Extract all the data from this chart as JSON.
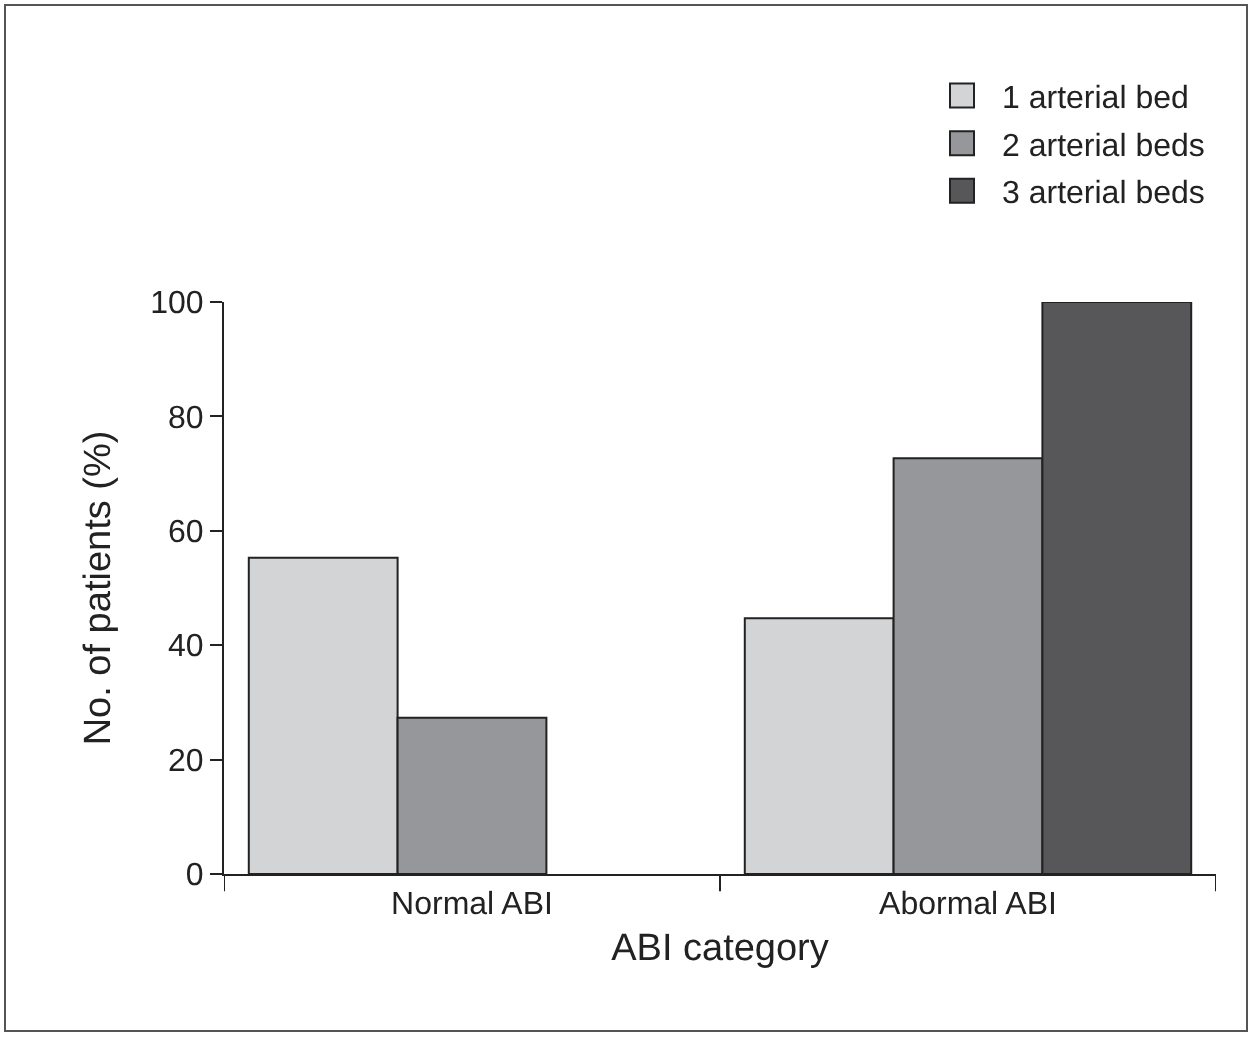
{
  "chart_data": {
    "type": "bar",
    "xlabel": "ABI category",
    "ylabel": "No. of patients (%)",
    "categories": [
      "Normal ABI",
      "Abormal ABI"
    ],
    "series": [
      {
        "name": "1 arterial bed",
        "color": "#d3d4d6",
        "values": [
          55.3,
          44.7
        ]
      },
      {
        "name": "2 arterial beds",
        "color": "#96979a",
        "values": [
          27.3,
          72.7
        ]
      },
      {
        "name": "3 arterial beds",
        "color": "#575759",
        "values": [
          null,
          100
        ]
      }
    ],
    "ylim": [
      0,
      100
    ],
    "yticks": [
      0,
      20,
      40,
      60,
      80,
      100
    ],
    "legend": "top right"
  }
}
